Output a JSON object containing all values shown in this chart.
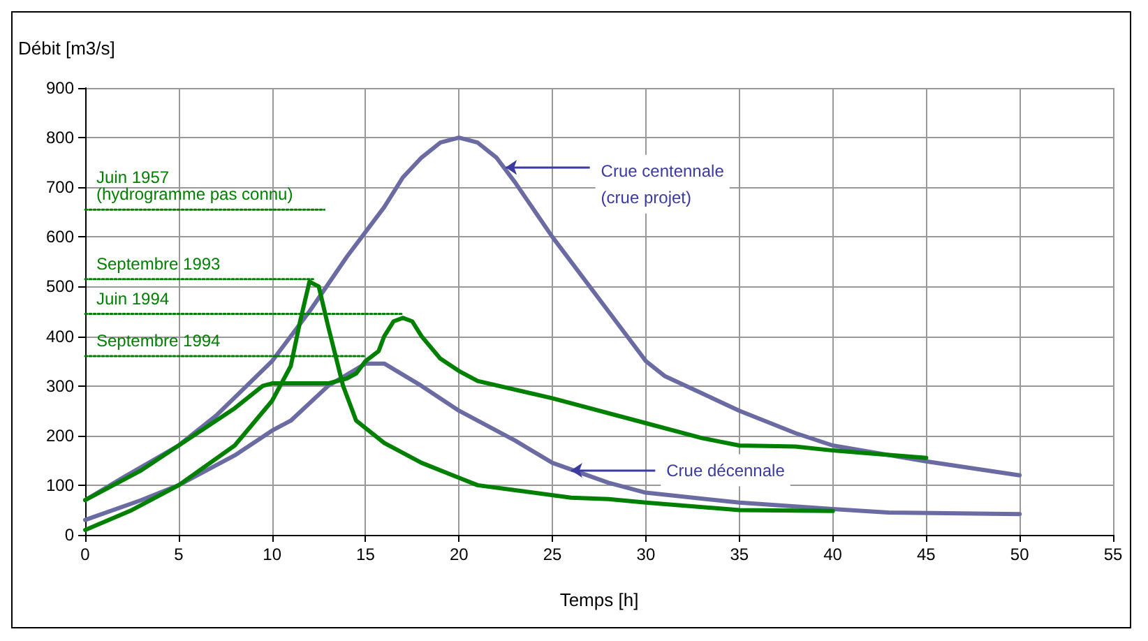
{
  "chart_data": {
    "type": "line",
    "ylabel": "Débit [m3/s]",
    "xlabel": "Temps [h]",
    "xlim": [
      0,
      55
    ],
    "xticks": [
      0,
      5,
      10,
      15,
      20,
      25,
      30,
      35,
      40,
      45,
      50,
      55
    ],
    "ylim": [
      0,
      900
    ],
    "yticks": [
      0,
      100,
      200,
      300,
      400,
      500,
      600,
      700,
      800,
      900
    ],
    "grid": true,
    "legend": false,
    "marker": "none",
    "line_style": "solid",
    "series": [
      {
        "color": "#6b6ba3",
        "x": [
          0,
          2,
          5,
          7,
          10,
          12,
          14,
          16,
          17,
          18,
          19,
          20,
          21,
          22,
          23,
          25,
          28,
          30,
          31,
          33,
          35,
          38,
          40,
          45,
          50
        ],
        "values": [
          70,
          115,
          180,
          240,
          350,
          450,
          560,
          660,
          720,
          760,
          790,
          800,
          790,
          760,
          710,
          600,
          450,
          350,
          320,
          285,
          250,
          205,
          180,
          148,
          120
        ]
      },
      {
        "color": "#6b6ba3",
        "x": [
          0,
          3,
          5,
          8,
          10,
          11,
          13,
          15,
          16,
          18,
          20,
          23,
          25,
          28,
          30,
          35,
          40,
          43,
          50
        ],
        "values": [
          30,
          70,
          100,
          160,
          210,
          230,
          300,
          345,
          345,
          300,
          250,
          190,
          145,
          105,
          85,
          65,
          52,
          45,
          42
        ]
      },
      {
        "color": "#008000",
        "x": [
          0,
          2.5,
          5,
          8,
          10,
          11,
          11.5,
          12,
          12.5,
          13,
          13.8,
          14.5,
          16,
          18,
          20,
          21,
          23,
          26,
          28,
          30,
          35,
          40
        ],
        "values": [
          10,
          50,
          100,
          180,
          270,
          340,
          430,
          510,
          500,
          420,
          300,
          230,
          185,
          145,
          115,
          100,
          90,
          75,
          72,
          65,
          50,
          48
        ]
      },
      {
        "color": "#008000",
        "x": [
          0,
          3,
          5,
          8,
          9.5,
          10,
          13,
          14,
          14.5,
          15,
          15.7,
          16,
          16.5,
          17,
          17.5,
          18,
          19,
          20,
          21,
          25,
          30,
          33,
          35,
          38,
          40,
          45
        ],
        "values": [
          70,
          130,
          180,
          255,
          300,
          305,
          305,
          315,
          325,
          350,
          370,
          400,
          430,
          437,
          430,
          400,
          355,
          330,
          310,
          275,
          225,
          195,
          180,
          178,
          170,
          155
        ]
      },
      {
        "name": "Juin 1957\n(hydrogramme pas connu)",
        "color": "#008000",
        "line_style": "dotted",
        "x": [
          0,
          12.8
        ],
        "values": [
          655,
          655
        ]
      },
      {
        "name": "Septembre 1993",
        "color": "#008000",
        "line_style": "dotted",
        "x": [
          0,
          12.2
        ],
        "values": [
          515,
          515
        ]
      },
      {
        "name": "Juin 1994",
        "color": "#008000",
        "line_style": "dotted",
        "x": [
          0,
          17
        ],
        "values": [
          445,
          445
        ]
      },
      {
        "name": "Septembre 1994",
        "color": "#008000",
        "line_style": "dotted",
        "x": [
          0,
          15
        ],
        "values": [
          360,
          360
        ]
      }
    ],
    "annotations": [
      {
        "text": "Crue centennale\n(crue projet)",
        "x": 22.5,
        "y": 740
      },
      {
        "text": "Crue décennale",
        "x": 26,
        "y": 130
      }
    ]
  }
}
